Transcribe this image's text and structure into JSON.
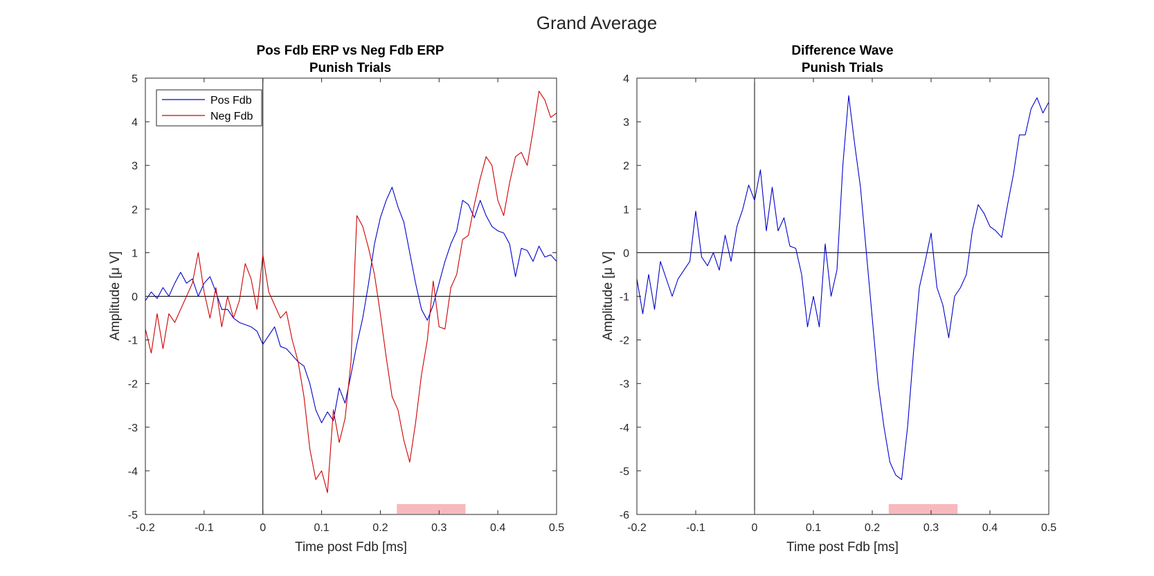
{
  "figure": {
    "title": "Grand Average"
  },
  "chart_data": [
    {
      "type": "line",
      "title": "Pos Fdb ERP vs Neg Fdb ERP",
      "subtitle": "Punish Trials",
      "xlabel": "Time post Fdb [ms]",
      "ylabel": "Amplitude [μ V]",
      "xlim": [
        -0.2,
        0.5
      ],
      "ylim": [
        -5,
        5
      ],
      "xticks": [
        -0.2,
        -0.1,
        0,
        0.1,
        0.2,
        0.3,
        0.4,
        0.5
      ],
      "xtick_labels": [
        "-0.2",
        "-0.1",
        "0",
        "0.1",
        "0.2",
        "0.3",
        "0.4",
        "0.5"
      ],
      "yticks": [
        -5,
        -4,
        -3,
        -2,
        -1,
        0,
        1,
        2,
        3,
        4,
        5
      ],
      "ytick_labels": [
        "-5",
        "-4",
        "-3",
        "-2",
        "-1",
        "0",
        "1",
        "2",
        "3",
        "4",
        "5"
      ],
      "grid": false,
      "legend": "top-left",
      "significance_window": {
        "x": [
          0.228,
          0.345
        ],
        "color": "#f7b9bd"
      },
      "series": [
        {
          "name": "Pos Fdb",
          "color": "#0000cc",
          "x": [
            -0.2,
            -0.19,
            -0.18,
            -0.17,
            -0.16,
            -0.15,
            -0.14,
            -0.13,
            -0.12,
            -0.11,
            -0.1,
            -0.09,
            -0.08,
            -0.07,
            -0.06,
            -0.05,
            -0.04,
            -0.03,
            -0.02,
            -0.01,
            0,
            0.01,
            0.02,
            0.03,
            0.04,
            0.05,
            0.06,
            0.07,
            0.08,
            0.09,
            0.1,
            0.11,
            0.12,
            0.13,
            0.14,
            0.15,
            0.16,
            0.17,
            0.18,
            0.19,
            0.2,
            0.21,
            0.22,
            0.23,
            0.24,
            0.25,
            0.26,
            0.27,
            0.28,
            0.29,
            0.3,
            0.31,
            0.32,
            0.33,
            0.34,
            0.35,
            0.36,
            0.37,
            0.38,
            0.39,
            0.4,
            0.41,
            0.42,
            0.43,
            0.44,
            0.45,
            0.46,
            0.47,
            0.48,
            0.49,
            0.5
          ],
          "y": [
            -0.1,
            0.1,
            -0.05,
            0.2,
            0.0,
            0.3,
            0.55,
            0.3,
            0.4,
            0.0,
            0.3,
            0.45,
            0.1,
            -0.3,
            -0.3,
            -0.5,
            -0.6,
            -0.65,
            -0.7,
            -0.8,
            -1.1,
            -0.9,
            -0.7,
            -1.15,
            -1.2,
            -1.35,
            -1.5,
            -1.6,
            -2.0,
            -2.6,
            -2.9,
            -2.65,
            -2.85,
            -2.1,
            -2.45,
            -1.8,
            -1.1,
            -0.5,
            0.3,
            1.2,
            1.8,
            2.2,
            2.5,
            2.05,
            1.7,
            1.0,
            0.3,
            -0.3,
            -0.55,
            -0.2,
            0.3,
            0.8,
            1.2,
            1.5,
            2.2,
            2.1,
            1.8,
            2.2,
            1.85,
            1.6,
            1.5,
            1.45,
            1.2,
            0.45,
            1.1,
            1.05,
            0.8,
            1.15,
            0.9,
            0.95,
            0.8
          ]
        },
        {
          "name": "Neg Fdb",
          "color": "#cc0000",
          "x": [
            -0.2,
            -0.19,
            -0.18,
            -0.17,
            -0.16,
            -0.15,
            -0.14,
            -0.13,
            -0.12,
            -0.11,
            -0.1,
            -0.09,
            -0.08,
            -0.07,
            -0.06,
            -0.05,
            -0.04,
            -0.03,
            -0.02,
            -0.01,
            0,
            0.01,
            0.02,
            0.03,
            0.04,
            0.05,
            0.06,
            0.07,
            0.08,
            0.09,
            0.1,
            0.11,
            0.12,
            0.13,
            0.14,
            0.15,
            0.16,
            0.17,
            0.18,
            0.19,
            0.2,
            0.21,
            0.22,
            0.23,
            0.24,
            0.25,
            0.26,
            0.27,
            0.28,
            0.29,
            0.3,
            0.31,
            0.32,
            0.33,
            0.34,
            0.35,
            0.36,
            0.37,
            0.38,
            0.39,
            0.4,
            0.41,
            0.42,
            0.43,
            0.44,
            0.45,
            0.46,
            0.47,
            0.48,
            0.49,
            0.5
          ],
          "y": [
            -0.75,
            -1.3,
            -0.4,
            -1.2,
            -0.4,
            -0.6,
            -0.3,
            0.0,
            0.3,
            1.0,
            0.1,
            -0.5,
            0.2,
            -0.7,
            0.0,
            -0.5,
            -0.1,
            0.75,
            0.4,
            -0.3,
            0.95,
            0.1,
            -0.2,
            -0.5,
            -0.35,
            -1.0,
            -1.5,
            -2.3,
            -3.5,
            -4.2,
            -4.0,
            -4.5,
            -2.6,
            -3.35,
            -2.8,
            -1.5,
            1.85,
            1.6,
            1.1,
            0.5,
            -0.4,
            -1.4,
            -2.3,
            -2.6,
            -3.3,
            -3.8,
            -2.9,
            -1.8,
            -1.0,
            0.35,
            -0.7,
            -0.75,
            0.2,
            0.5,
            1.3,
            1.4,
            2.1,
            2.7,
            3.2,
            3.0,
            2.2,
            1.85,
            2.6,
            3.2,
            3.3,
            3.0,
            3.8,
            4.7,
            4.5,
            4.1,
            4.2
          ]
        }
      ]
    },
    {
      "type": "line",
      "title": "Difference Wave",
      "subtitle": "Punish Trials",
      "xlabel": "Time post Fdb [ms]",
      "ylabel": "Amplitude [μ V]",
      "xlim": [
        -0.2,
        0.5
      ],
      "ylim": [
        -6,
        4
      ],
      "xticks": [
        -0.2,
        -0.1,
        0,
        0.1,
        0.2,
        0.3,
        0.4,
        0.5
      ],
      "xtick_labels": [
        "-0.2",
        "-0.1",
        "0",
        "0.1",
        "0.2",
        "0.3",
        "0.4",
        "0.5"
      ],
      "yticks": [
        -6,
        -5,
        -4,
        -3,
        -2,
        -1,
        0,
        1,
        2,
        3,
        4
      ],
      "ytick_labels": [
        "-6",
        "-5",
        "-4",
        "-3",
        "-2",
        "-1",
        "0",
        "1",
        "2",
        "3",
        "4"
      ],
      "grid": false,
      "significance_window": {
        "x": [
          0.228,
          0.345
        ],
        "color": "#f7b9bd"
      },
      "series": [
        {
          "color": "#0000cc",
          "x": [
            -0.2,
            -0.19,
            -0.18,
            -0.17,
            -0.16,
            -0.15,
            -0.14,
            -0.13,
            -0.12,
            -0.11,
            -0.1,
            -0.09,
            -0.08,
            -0.07,
            -0.06,
            -0.05,
            -0.04,
            -0.03,
            -0.02,
            -0.01,
            0,
            0.01,
            0.02,
            0.03,
            0.04,
            0.05,
            0.06,
            0.07,
            0.08,
            0.09,
            0.1,
            0.11,
            0.12,
            0.13,
            0.14,
            0.15,
            0.16,
            0.17,
            0.18,
            0.19,
            0.2,
            0.21,
            0.22,
            0.23,
            0.24,
            0.25,
            0.26,
            0.27,
            0.28,
            0.29,
            0.3,
            0.31,
            0.32,
            0.33,
            0.34,
            0.35,
            0.36,
            0.37,
            0.38,
            0.39,
            0.4,
            0.41,
            0.42,
            0.43,
            0.44,
            0.45,
            0.46,
            0.47,
            0.48,
            0.49,
            0.5
          ],
          "y": [
            -0.6,
            -1.4,
            -0.5,
            -1.3,
            -0.2,
            -0.6,
            -1.0,
            -0.6,
            -0.4,
            -0.2,
            0.95,
            -0.1,
            -0.3,
            0.0,
            -0.4,
            0.4,
            -0.2,
            0.6,
            1.0,
            1.55,
            1.2,
            1.9,
            0.5,
            1.5,
            0.5,
            0.8,
            0.15,
            0.1,
            -0.5,
            -1.7,
            -1.0,
            -1.7,
            0.2,
            -1.0,
            -0.4,
            2.0,
            3.6,
            2.5,
            1.5,
            0.0,
            -1.5,
            -3.0,
            -4.0,
            -4.8,
            -5.1,
            -5.2,
            -4.0,
            -2.3,
            -0.8,
            -0.2,
            0.45,
            -0.8,
            -1.2,
            -1.95,
            -1.0,
            -0.8,
            -0.5,
            0.5,
            1.1,
            0.9,
            0.6,
            0.5,
            0.35,
            1.1,
            1.8,
            2.7,
            2.7,
            3.3,
            3.55,
            3.2,
            3.45
          ]
        }
      ]
    }
  ]
}
